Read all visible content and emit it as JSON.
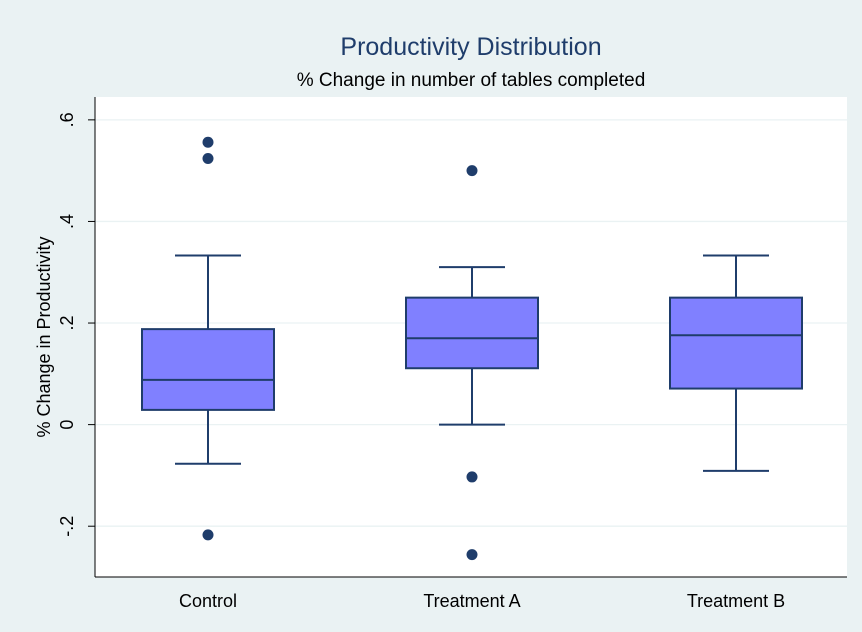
{
  "colors": {
    "background": "#eaf2f3",
    "plot_background": "#ffffff",
    "box_fill": "#8080ff",
    "box_stroke": "#1f3d6b",
    "grid": "#eaf2f3",
    "outlier": "#1f3d6b",
    "title": "#1f3d6b"
  },
  "chart_data": {
    "type": "box",
    "title": "Productivity Distribution",
    "subtitle": "% Change in number of tables completed",
    "ylabel": "% Change in Productivity",
    "xlabel": "",
    "ylim": [
      -0.3,
      0.645
    ],
    "yticks": [
      -0.2,
      0,
      0.2,
      0.4,
      0.6
    ],
    "ytick_labels": [
      "-.2",
      "0",
      ".2",
      ".4",
      ".6"
    ],
    "grid": true,
    "categories": [
      "Control",
      "Treatment A",
      "Treatment B"
    ],
    "boxes": [
      {
        "name": "Control",
        "whisker_low": -0.077,
        "q1": 0.029,
        "median": 0.088,
        "q3": 0.188,
        "whisker_high": 0.333,
        "outliers": [
          0.556,
          0.524,
          -0.217
        ]
      },
      {
        "name": "Treatment A",
        "whisker_low": 0.0,
        "q1": 0.111,
        "median": 0.17,
        "q3": 0.25,
        "whisker_high": 0.31,
        "outliers": [
          0.5,
          -0.103,
          -0.256
        ]
      },
      {
        "name": "Treatment B",
        "whisker_low": -0.091,
        "q1": 0.071,
        "median": 0.176,
        "q3": 0.25,
        "whisker_high": 0.333,
        "outliers": []
      }
    ]
  }
}
